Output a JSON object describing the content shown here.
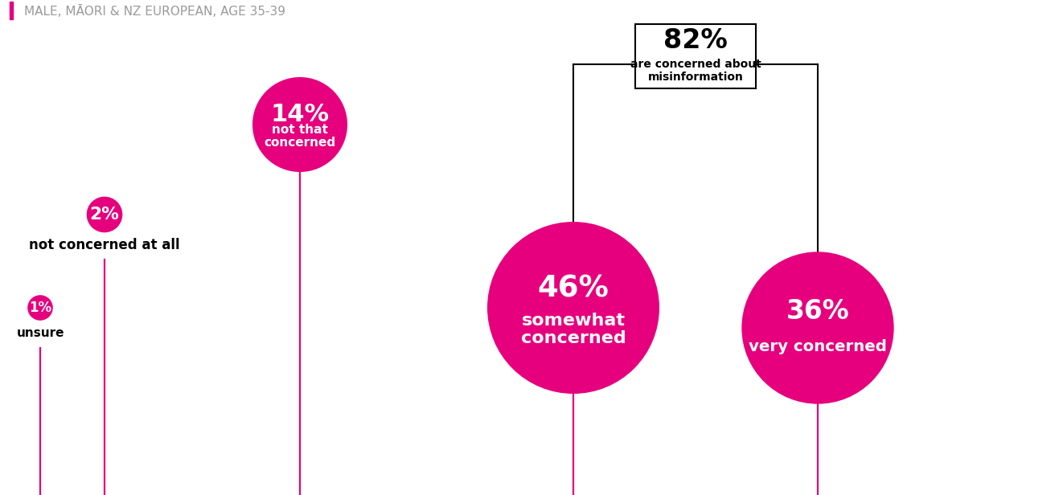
{
  "chart_data": {
    "type": "bubble",
    "caption": "MALE, MĀORI & NZ EUROPEAN, AGE 35-39",
    "categories": [
      "unsure",
      "not concerned at all",
      "not that concerned",
      "somewhat concerned",
      "very concerned"
    ],
    "values": [
      1,
      2,
      14,
      46,
      36
    ],
    "value_labels": [
      "1%",
      "2%",
      "14%",
      "46%",
      "36%"
    ],
    "color": "#e6007e",
    "data_labels": true,
    "tick_labels": false,
    "annotations": [
      {
        "value": 82,
        "label": "82%",
        "text": "are concerned about misinformation",
        "categories": [
          "somewhat concerned",
          "very concerned"
        ]
      }
    ]
  }
}
